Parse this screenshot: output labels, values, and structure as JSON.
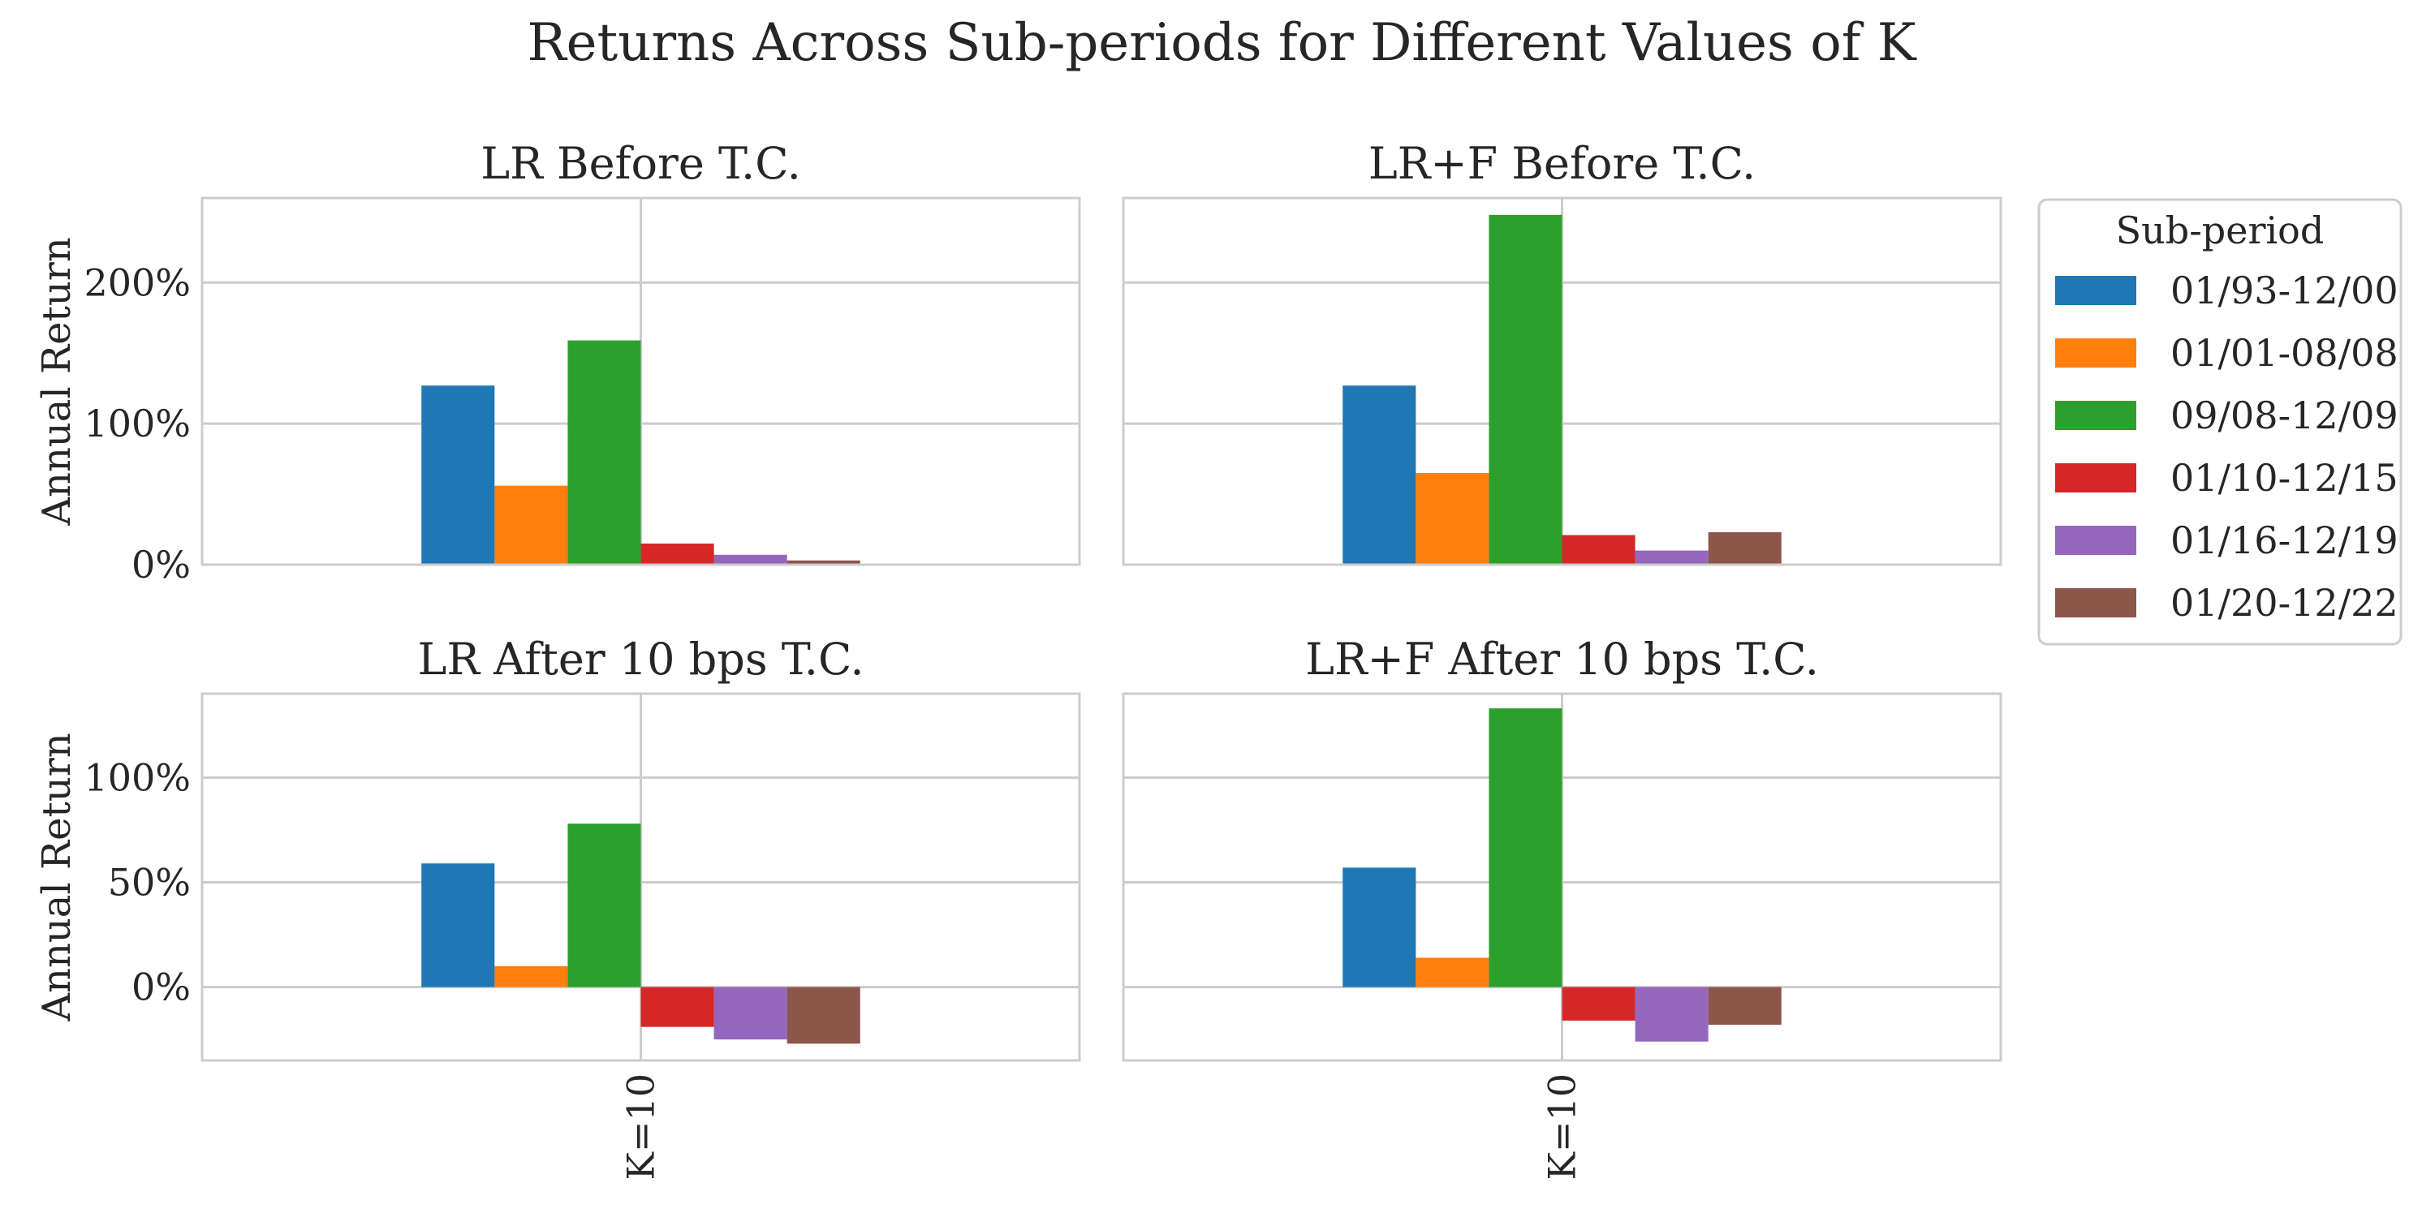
{
  "figure": {
    "title": "Returns Across Sub-periods for Different Values of K"
  },
  "legend": {
    "title": "Sub-period",
    "placement": "right",
    "entries": [
      {
        "label": "01/93-12/00",
        "color": "#1f77b4"
      },
      {
        "label": "01/01-08/08",
        "color": "#ff7f0e"
      },
      {
        "label": "09/08-12/09",
        "color": "#2ca02c"
      },
      {
        "label": "01/10-12/15",
        "color": "#d62728"
      },
      {
        "label": "01/16-12/19",
        "color": "#9467bd"
      },
      {
        "label": "01/20-12/22",
        "color": "#8c564b"
      }
    ]
  },
  "chart_data": [
    {
      "type": "bar",
      "title": "LR Before T.C.",
      "ylabel": "Annual Return",
      "categories": [
        "K=10"
      ],
      "ylim": [
        0,
        2.6
      ],
      "yticks": [
        {
          "value": 0,
          "label": "0%"
        },
        {
          "value": 1,
          "label": "100%"
        },
        {
          "value": 2,
          "label": "200%"
        }
      ],
      "grid": true,
      "series": [
        {
          "name": "01/93-12/00",
          "values": [
            1.27
          ]
        },
        {
          "name": "01/01-08/08",
          "values": [
            0.56
          ]
        },
        {
          "name": "09/08-12/09",
          "values": [
            1.59
          ]
        },
        {
          "name": "01/10-12/15",
          "values": [
            0.15
          ]
        },
        {
          "name": "01/16-12/19",
          "values": [
            0.07
          ]
        },
        {
          "name": "01/20-12/22",
          "values": [
            0.03
          ]
        }
      ]
    },
    {
      "type": "bar",
      "title": "LR+F Before T.C.",
      "ylabel": "",
      "categories": [
        "K=10"
      ],
      "ylim": [
        0,
        2.6
      ],
      "yticks": [
        {
          "value": 0,
          "label": ""
        },
        {
          "value": 1,
          "label": ""
        },
        {
          "value": 2,
          "label": ""
        }
      ],
      "grid": true,
      "series": [
        {
          "name": "01/93-12/00",
          "values": [
            1.27
          ]
        },
        {
          "name": "01/01-08/08",
          "values": [
            0.65
          ]
        },
        {
          "name": "09/08-12/09",
          "values": [
            2.48
          ]
        },
        {
          "name": "01/10-12/15",
          "values": [
            0.21
          ]
        },
        {
          "name": "01/16-12/19",
          "values": [
            0.1
          ]
        },
        {
          "name": "01/20-12/22",
          "values": [
            0.23
          ]
        }
      ]
    },
    {
      "type": "bar",
      "title": "LR After 10 bps T.C.",
      "ylabel": "Annual Return",
      "categories": [
        "K=10"
      ],
      "ylim": [
        -0.35,
        1.4
      ],
      "yticks": [
        {
          "value": 0,
          "label": "0%"
        },
        {
          "value": 0.5,
          "label": "50%"
        },
        {
          "value": 1,
          "label": "100%"
        }
      ],
      "grid": true,
      "series": [
        {
          "name": "01/93-12/00",
          "values": [
            0.59
          ]
        },
        {
          "name": "01/01-08/08",
          "values": [
            0.1
          ]
        },
        {
          "name": "09/08-12/09",
          "values": [
            0.78
          ]
        },
        {
          "name": "01/10-12/15",
          "values": [
            -0.19
          ]
        },
        {
          "name": "01/16-12/19",
          "values": [
            -0.25
          ]
        },
        {
          "name": "01/20-12/22",
          "values": [
            -0.27
          ]
        }
      ]
    },
    {
      "type": "bar",
      "title": "LR+F After 10 bps T.C.",
      "ylabel": "",
      "categories": [
        "K=10"
      ],
      "ylim": [
        -0.35,
        1.4
      ],
      "yticks": [
        {
          "value": 0,
          "label": ""
        },
        {
          "value": 0.5,
          "label": ""
        },
        {
          "value": 1,
          "label": ""
        }
      ],
      "grid": true,
      "series": [
        {
          "name": "01/93-12/00",
          "values": [
            0.57
          ]
        },
        {
          "name": "01/01-08/08",
          "values": [
            0.14
          ]
        },
        {
          "name": "09/08-12/09",
          "values": [
            1.33
          ]
        },
        {
          "name": "01/10-12/15",
          "values": [
            -0.16
          ]
        },
        {
          "name": "01/16-12/19",
          "values": [
            -0.26
          ]
        },
        {
          "name": "01/20-12/22",
          "values": [
            -0.18
          ]
        }
      ]
    }
  ]
}
